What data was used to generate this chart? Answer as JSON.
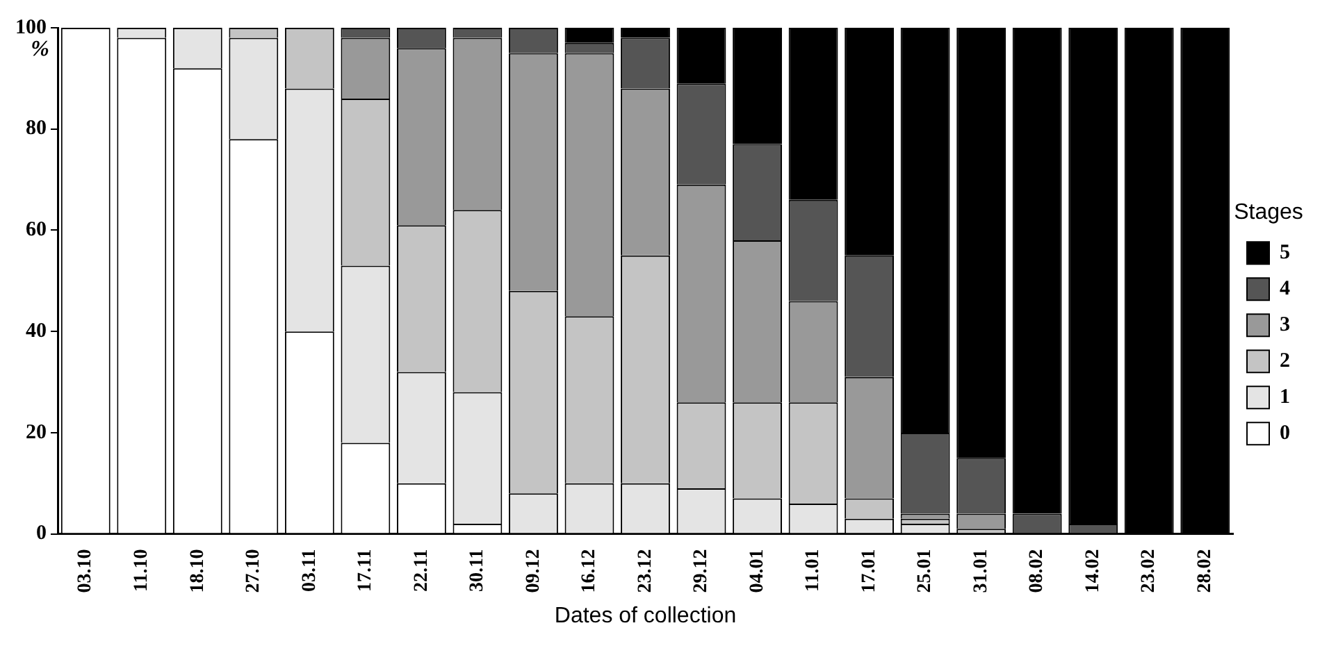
{
  "chart_data": {
    "type": "bar",
    "stacked": true,
    "xlabel": "Dates of collection",
    "ylabel": "%",
    "legend_title": "Stages",
    "legend": "right",
    "categories": [
      "03.10",
      "11.10",
      "18.10",
      "27.10",
      "03.11",
      "17.11",
      "22.11",
      "30.11",
      "09.12",
      "16.12",
      "23.12",
      "29.12",
      "04.01",
      "11.01",
      "17.01",
      "25.01",
      "31.01",
      "08.02",
      "14.02",
      "23.02",
      "28.02"
    ],
    "ylim": [
      0,
      100
    ],
    "yticks": [
      0,
      20,
      40,
      60,
      80,
      100
    ],
    "series": [
      {
        "name": "0",
        "color": "#ffffff",
        "values": [
          100,
          98,
          92,
          78,
          40,
          18,
          10,
          2,
          0,
          0,
          0,
          0,
          0,
          0,
          0,
          0,
          0,
          0,
          0,
          0,
          0
        ]
      },
      {
        "name": "1",
        "color": "#e4e4e4",
        "values": [
          0,
          2,
          8,
          20,
          48,
          35,
          22,
          26,
          8,
          10,
          10,
          9,
          7,
          6,
          3,
          2,
          0,
          0,
          0,
          0,
          0
        ]
      },
      {
        "name": "2",
        "color": "#c4c4c4",
        "values": [
          0,
          0,
          0,
          2,
          12,
          33,
          29,
          36,
          40,
          33,
          45,
          17,
          19,
          20,
          4,
          1,
          1,
          0,
          0,
          0,
          0
        ]
      },
      {
        "name": "3",
        "color": "#999999",
        "values": [
          0,
          0,
          0,
          0,
          0,
          12,
          35,
          34,
          47,
          52,
          33,
          43,
          32,
          20,
          24,
          1,
          3,
          0,
          0,
          0,
          0
        ]
      },
      {
        "name": "4",
        "color": "#555555",
        "values": [
          0,
          0,
          0,
          0,
          0,
          2,
          4,
          2,
          5,
          2,
          10,
          20,
          19,
          20,
          24,
          16,
          11,
          4,
          2,
          0,
          0
        ]
      },
      {
        "name": "5",
        "color": "#000000",
        "values": [
          0,
          0,
          0,
          0,
          0,
          0,
          0,
          0,
          0,
          3,
          2,
          11,
          23,
          34,
          45,
          80,
          85,
          96,
          98,
          100,
          100
        ]
      }
    ]
  }
}
